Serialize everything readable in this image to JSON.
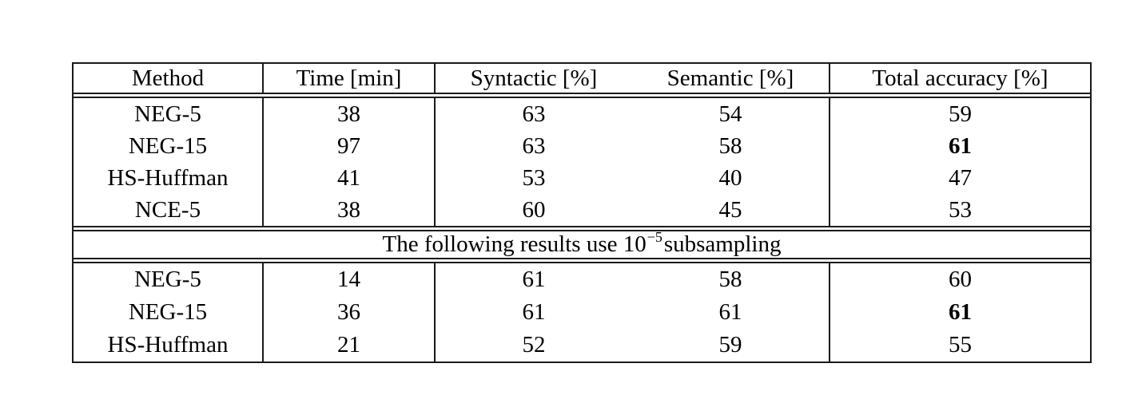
{
  "page": {
    "background": "#ffffff"
  },
  "table": {
    "border_color": "#1a1a1a",
    "columns": [
      "Method",
      "Time [min]",
      "Syntactic [%]",
      "Semantic [%]",
      "Total accuracy [%]"
    ],
    "sections": {
      "top": {
        "rows": [
          {
            "method": "NEG-5",
            "time": "38",
            "syntactic": "63",
            "semantic": "54",
            "total": "59",
            "total_bold": false
          },
          {
            "method": "NEG-15",
            "time": "97",
            "syntactic": "63",
            "semantic": "58",
            "total": "61",
            "total_bold": true
          },
          {
            "method": "HS-Huffman",
            "time": "41",
            "syntactic": "53",
            "semantic": "40",
            "total": "47",
            "total_bold": false
          },
          {
            "method": "NCE-5",
            "time": "38",
            "syntactic": "60",
            "semantic": "45",
            "total": "53",
            "total_bold": false
          }
        ]
      },
      "divider": {
        "text_prefix": "The following results use 10",
        "superscript": "−5",
        "text_suffix": "subsampling"
      },
      "bottom": {
        "rows": [
          {
            "method": "NEG-5",
            "time": "14",
            "syntactic": "61",
            "semantic": "58",
            "total": "60",
            "total_bold": false
          },
          {
            "method": "NEG-15",
            "time": "36",
            "syntactic": "61",
            "semantic": "61",
            "total": "61",
            "total_bold": true
          },
          {
            "method": "HS-Huffman",
            "time": "21",
            "syntactic": "52",
            "semantic": "59",
            "total": "55",
            "total_bold": false
          }
        ]
      }
    }
  }
}
